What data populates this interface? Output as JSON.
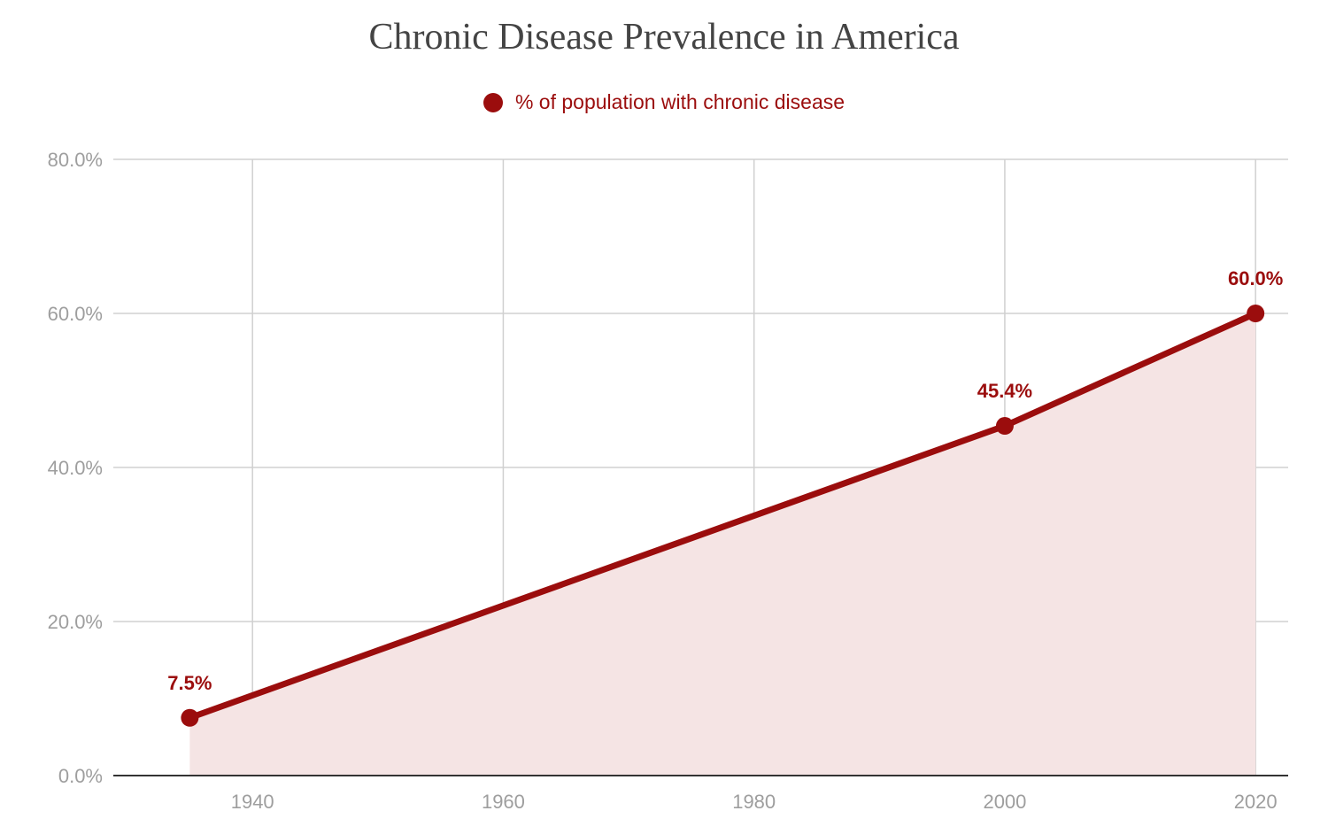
{
  "chart_data": {
    "type": "area",
    "title": "Chronic Disease Prevalence in America",
    "xlabel": "",
    "ylabel": "",
    "x_ticks": [
      1940,
      1960,
      1980,
      2000,
      2020
    ],
    "y_ticks": [
      "0.0%",
      "20.0%",
      "40.0%",
      "60.0%",
      "80.0%"
    ],
    "xlim": [
      1935,
      2020
    ],
    "ylim": [
      0,
      80
    ],
    "grid": true,
    "legend_position": "top-center",
    "series": [
      {
        "name": "% of population with chronic disease",
        "color": "#9b0d0d",
        "fill_color": "#f5e4e4",
        "points": [
          {
            "x": 1935,
            "y": 7.5,
            "label": "7.5%"
          },
          {
            "x": 2000,
            "y": 45.4,
            "label": "45.4%"
          },
          {
            "x": 2020,
            "y": 60.0,
            "label": "60.0%"
          }
        ]
      }
    ]
  }
}
